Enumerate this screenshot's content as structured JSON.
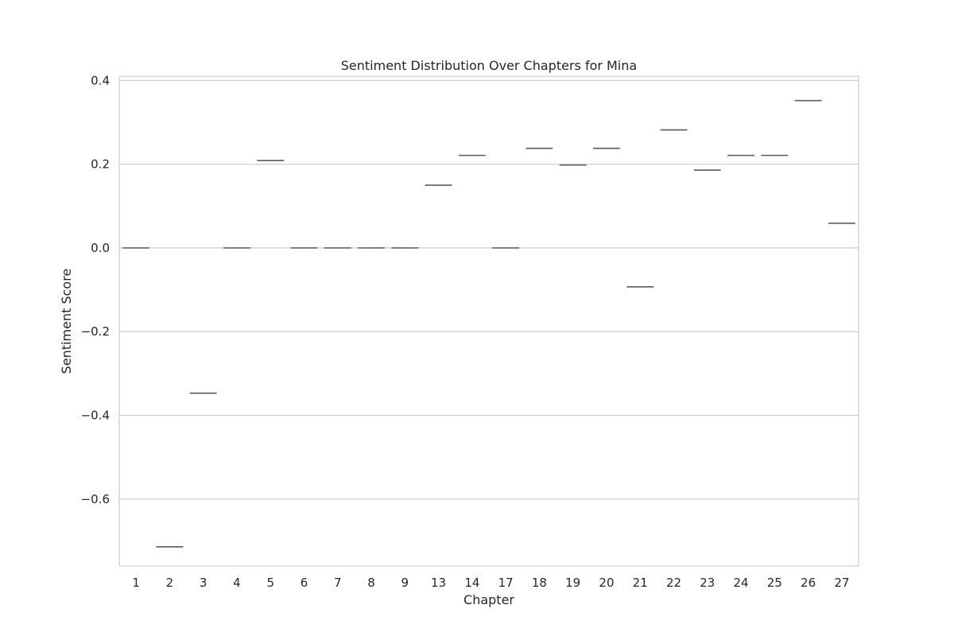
{
  "chart_data": {
    "type": "box",
    "title": "Sentiment Distribution Over Chapters for Mina",
    "xlabel": "Chapter",
    "ylabel": "Sentiment Score",
    "categories": [
      "1",
      "2",
      "3",
      "4",
      "5",
      "6",
      "7",
      "8",
      "9",
      "13",
      "14",
      "17",
      "18",
      "19",
      "20",
      "21",
      "22",
      "23",
      "24",
      "25",
      "26",
      "27"
    ],
    "values": [
      0.0,
      -0.714,
      -0.347,
      0.0,
      0.209,
      0.0,
      0.0,
      0.0,
      0.0,
      0.15,
      0.221,
      0.0,
      0.238,
      0.198,
      0.238,
      -0.093,
      0.282,
      0.186,
      0.221,
      0.221,
      0.352,
      0.059
    ],
    "ylim": [
      -0.76,
      0.41
    ],
    "yticks": [
      0.4,
      0.2,
      0.0,
      -0.2,
      -0.4,
      -0.6
    ],
    "ytick_labels": [
      "0.4",
      "0.2",
      "0.0",
      "−0.2",
      "−0.4",
      "−0.6"
    ],
    "grid": true,
    "colors": {
      "grid": "#cccccc",
      "frame": "#cccccc",
      "median": "#5a5a5a",
      "text": "#262626"
    }
  }
}
